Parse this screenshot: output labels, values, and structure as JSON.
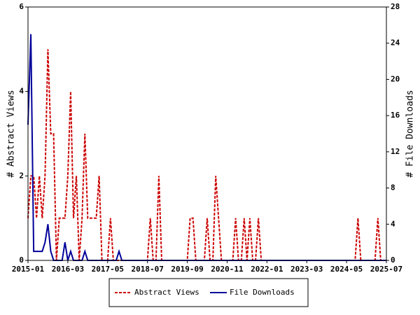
{
  "chart_data": {
    "type": "line",
    "y_label": "# Abstract Views",
    "y2_label": "# File Downloads",
    "x": [
      "2015-01",
      "2015-02",
      "2015-03",
      "2015-04",
      "2015-05",
      "2015-06",
      "2015-07",
      "2015-08",
      "2015-09",
      "2015-10",
      "2015-11",
      "2015-12",
      "2016-01",
      "2016-02",
      "2016-03",
      "2016-04",
      "2016-05",
      "2016-06",
      "2016-07",
      "2016-08",
      "2016-09",
      "2016-10",
      "2016-11",
      "2016-12",
      "2017-01",
      "2017-02",
      "2017-03",
      "2017-04",
      "2017-05",
      "2017-06",
      "2017-07",
      "2017-08",
      "2017-09",
      "2017-10",
      "2017-11",
      "2017-12",
      "2018-01",
      "2018-02",
      "2018-03",
      "2018-04",
      "2018-05",
      "2018-06",
      "2018-07",
      "2018-08",
      "2018-09",
      "2018-10",
      "2018-11",
      "2018-12",
      "2019-01",
      "2019-02",
      "2019-03",
      "2019-04",
      "2019-05",
      "2019-06",
      "2019-07",
      "2019-08",
      "2019-09",
      "2019-10",
      "2019-11",
      "2019-12",
      "2020-01",
      "2020-02",
      "2020-03",
      "2020-04",
      "2020-05",
      "2020-06",
      "2020-07",
      "2020-08",
      "2020-09",
      "2020-10",
      "2020-11",
      "2020-12",
      "2021-01",
      "2021-02",
      "2021-03",
      "2021-04",
      "2021-05",
      "2021-06",
      "2021-07",
      "2021-08",
      "2021-09",
      "2021-10",
      "2021-11",
      "2021-12",
      "2022-01",
      "2022-02",
      "2022-03",
      "2022-04",
      "2022-05",
      "2022-06",
      "2022-07",
      "2022-08",
      "2022-09",
      "2022-10",
      "2022-11",
      "2022-12",
      "2023-01",
      "2023-02",
      "2023-03",
      "2023-04",
      "2023-05",
      "2023-06",
      "2023-07",
      "2023-08",
      "2023-09",
      "2023-10",
      "2023-11",
      "2023-12",
      "2024-01",
      "2024-02",
      "2024-03",
      "2024-04",
      "2024-05",
      "2024-06",
      "2024-07",
      "2024-08",
      "2024-09",
      "2024-10",
      "2024-11",
      "2024-12",
      "2025-01",
      "2025-02",
      "2025-03",
      "2025-04",
      "2025-05",
      "2025-06",
      "2025-07"
    ],
    "xticks": [
      "2015-01",
      "2016-03",
      "2017-05",
      "2018-07",
      "2019-09",
      "2020-11",
      "2022-01",
      "2023-03",
      "2024-05",
      "2025-07"
    ],
    "ylim": [
      0,
      6
    ],
    "yticks": [
      0,
      2,
      4,
      6
    ],
    "y2lim": [
      0,
      28
    ],
    "y2ticks": [
      0,
      4,
      8,
      12,
      16,
      20,
      24,
      28
    ],
    "legend": "bottom",
    "series": [
      {
        "name": "Abstract Views",
        "color": "#cc0000",
        "style": "dashed",
        "values": [
          1,
          2,
          2,
          1,
          2,
          1,
          2,
          5,
          3,
          3,
          0,
          1,
          1,
          1,
          2,
          4,
          1,
          2,
          0,
          1,
          3,
          1,
          1,
          1,
          1,
          2,
          0,
          0,
          0,
          1,
          0,
          0,
          0,
          0,
          0,
          0,
          0,
          0,
          0,
          0,
          0,
          0,
          0,
          1,
          0,
          0,
          2,
          0,
          0,
          0,
          0,
          0,
          0,
          0,
          0,
          0,
          0,
          1,
          1,
          0,
          0,
          0,
          0,
          1,
          0,
          0,
          2,
          1,
          0,
          0,
          0,
          0,
          0,
          1,
          0,
          0,
          1,
          0,
          1,
          0,
          0,
          1,
          0,
          0,
          0,
          0,
          0,
          0,
          0,
          0,
          0,
          0,
          0,
          0,
          0,
          0,
          0,
          0,
          0,
          0,
          0,
          0,
          0,
          0,
          0,
          0,
          0,
          0,
          0,
          0,
          0,
          0,
          0,
          0,
          0,
          0,
          1,
          0,
          0,
          0,
          0,
          0,
          0,
          1,
          0,
          0,
          0
        ]
      },
      {
        "name": "File Downloads",
        "color": "#000099",
        "style": "solid",
        "axis": "y2",
        "values": [
          15,
          25,
          1,
          1,
          1,
          1,
          2,
          4,
          1,
          0,
          0,
          0,
          0,
          2,
          0,
          1,
          0,
          0,
          0,
          0,
          1,
          0,
          0,
          0,
          0,
          0,
          0,
          0,
          0,
          0,
          0,
          0,
          1,
          0,
          0,
          0,
          0,
          0,
          0,
          0,
          0,
          0,
          0,
          0,
          0,
          0,
          0,
          0,
          0,
          0,
          0,
          0,
          0,
          0,
          0,
          0,
          0,
          0,
          0,
          0,
          0,
          0,
          0,
          0,
          0,
          0,
          0,
          0,
          0,
          0,
          0,
          0,
          0,
          0,
          0,
          0,
          0,
          0,
          0,
          0,
          0,
          0,
          0,
          0,
          0,
          0,
          0,
          0,
          0,
          0,
          0,
          0,
          0,
          0,
          0,
          0,
          0,
          0,
          0,
          0,
          0,
          0,
          0,
          0,
          0,
          0,
          0,
          0,
          0,
          0,
          0,
          0,
          0,
          0,
          0,
          0,
          0,
          0,
          0,
          0,
          0,
          0,
          0,
          0,
          0,
          0,
          0
        ]
      }
    ]
  }
}
